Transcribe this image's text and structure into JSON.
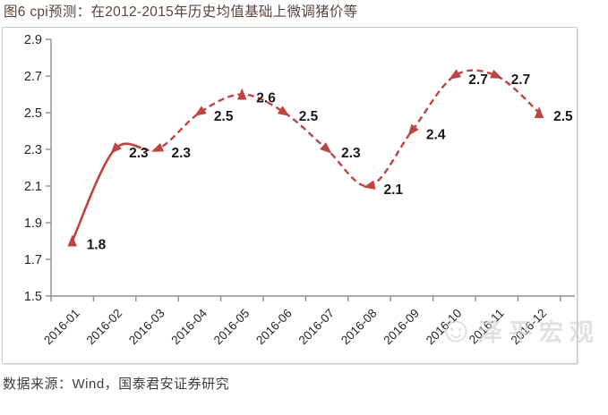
{
  "header": {
    "title": "图6 cpi预测：在2012-2015年历史均值基础上微调猪价等"
  },
  "chart_data": {
    "type": "line",
    "title": "图6 cpi预测：在2012-2015年历史均值基础上微调猪价等",
    "categories": [
      "2016-01",
      "2016-02",
      "2016-03",
      "2016-04",
      "2016-05",
      "2016-06",
      "2016-07",
      "2016-08",
      "2016-09",
      "2016-10",
      "2016-11",
      "2016-12"
    ],
    "series": [
      {
        "name": "cpi预测",
        "values": [
          1.8,
          2.3,
          2.3,
          2.5,
          2.6,
          2.5,
          2.3,
          2.1,
          2.4,
          2.7,
          2.7,
          2.5
        ],
        "actual_solid_through": "2016-02",
        "forecast_style": "dashed"
      }
    ],
    "ylim": [
      1.5,
      2.9
    ],
    "yticks": [
      1.5,
      1.7,
      1.9,
      2.1,
      2.3,
      2.5,
      2.7,
      2.9
    ],
    "x_tick_rotation": -45,
    "grid": false,
    "legend_position": "none",
    "marker": "triangle",
    "show_data_labels": true,
    "colors": {
      "line": "#bf4340",
      "axis": "#8f8f8f",
      "tick_label": "#262626",
      "data_label": "#1a1a1a"
    }
  },
  "watermark": {
    "icon": "smiley-face-icon",
    "text": "泽平宏观"
  },
  "footer": {
    "source_label": "数据来源：Wind，国泰君安证券研究"
  }
}
